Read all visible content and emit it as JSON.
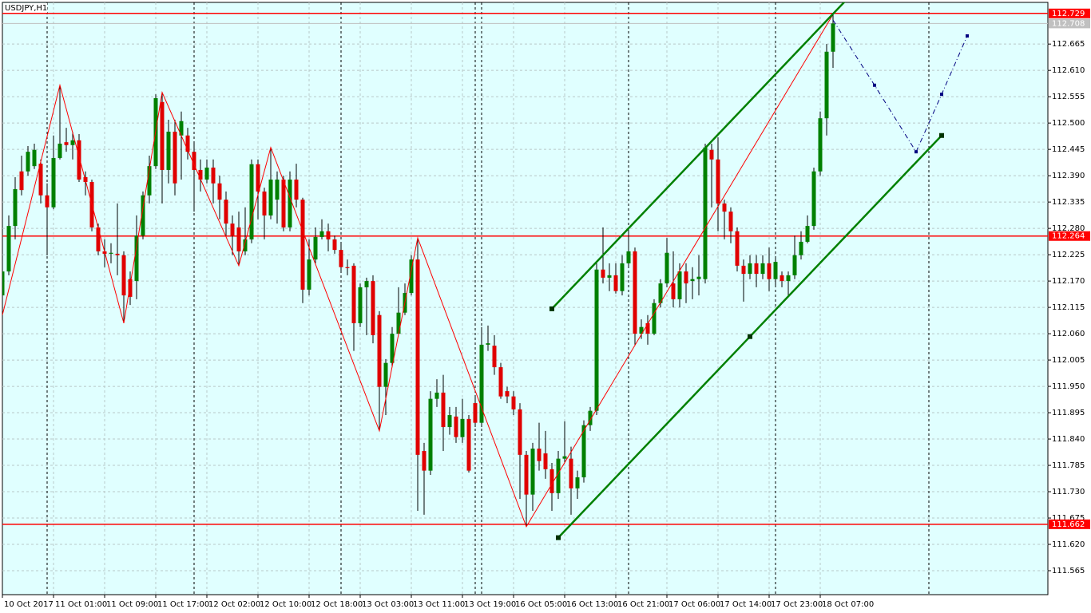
{
  "chart_data": {
    "type": "candlestick",
    "title": "USDJPY,H1",
    "categories": [
      "10 Oct 2017",
      null,
      null,
      null,
      null,
      null,
      null,
      null,
      "11 Oct 01:00",
      null,
      null,
      null,
      null,
      null,
      null,
      null,
      "11 Oct 09:00",
      null,
      null,
      null,
      null,
      null,
      null,
      null,
      "11 Oct 17:00",
      null,
      null,
      null,
      null,
      null,
      null,
      null,
      "12 Oct 02:00",
      null,
      null,
      null,
      null,
      null,
      null,
      null,
      "12 Oct 10:00",
      null,
      null,
      null,
      null,
      null,
      null,
      null,
      "12 Oct 18:00",
      null,
      null,
      null,
      null,
      null,
      null,
      null,
      "13 Oct 03:00",
      null,
      null,
      null,
      null,
      null,
      null,
      null,
      "13 Oct 11:00",
      null,
      null,
      null,
      null,
      null,
      null,
      null,
      "13 Oct 19:00",
      null,
      null,
      null,
      null,
      null,
      null,
      null,
      "16 Oct 05:00",
      null,
      null,
      null,
      null,
      null,
      null,
      null,
      "16 Oct 13:00",
      null,
      null,
      null,
      null,
      null,
      null,
      null,
      "16 Oct 21:00",
      null,
      null,
      null,
      null,
      null,
      null,
      null,
      "17 Oct 06:00",
      null,
      null,
      null,
      null,
      null,
      null,
      null,
      "17 Oct 14:00",
      null,
      null,
      null,
      null,
      null,
      null,
      null,
      "17 Oct 23:00",
      null,
      null,
      null,
      null,
      null,
      null,
      null,
      "18 Oct 07:00",
      null,
      null
    ],
    "open": [
      112.14,
      112.19,
      112.285,
      112.399,
      112.399,
      112.41,
      112.415,
      112.349,
      112.324,
      112.427,
      112.46,
      112.454,
      112.464,
      112.387,
      112.377,
      112.282,
      112.232,
      112.227,
      112.227,
      112.224,
      112.174,
      112.17,
      112.265,
      112.349,
      112.41,
      112.544,
      112.402,
      112.482,
      112.474,
      112.474,
      112.44,
      112.402,
      112.382,
      112.407,
      112.374,
      112.34,
      112.29,
      112.282,
      112.232,
      112.257,
      112.414,
      112.357,
      112.307,
      112.34,
      112.382,
      112.282,
      112.382,
      112.34,
      112.152,
      112.215,
      112.262,
      112.274,
      112.257,
      112.235,
      112.199,
      112.202,
      112.082,
      112.157,
      112.17,
      112.099,
      111.949,
      111.999,
      112.06,
      112.104,
      112.145,
      112.215,
      111.815,
      111.774,
      111.924,
      111.937,
      111.865,
      111.887,
      111.844,
      111.882,
      111.915,
      111.874,
      112.037,
      112.035,
      111.99,
      111.94,
      111.929,
      111.902,
      111.807,
      111.724,
      111.82,
      111.81,
      111.777,
      111.727,
      111.799,
      111.799,
      111.737,
      111.76,
      111.869,
      111.899,
      112.194,
      112.177,
      112.182,
      112.149,
      112.207,
      112.232,
      112.06,
      112.082,
      112.06,
      112.124,
      112.165,
      112.165,
      112.132,
      112.19,
      112.17,
      112.174,
      112.174,
      112.444,
      112.424,
      112.332,
      112.315,
      112.274,
      112.202,
      112.185,
      112.207,
      112.185,
      112.207,
      112.174,
      112.182,
      112.17,
      112.182,
      112.224,
      112.252,
      112.285,
      112.399,
      112.51,
      112.649
    ],
    "high": [
      112.207,
      112.307,
      112.387,
      112.432,
      112.452,
      112.457,
      112.424,
      112.374,
      112.474,
      112.579,
      112.49,
      112.482,
      112.477,
      112.399,
      112.382,
      112.29,
      112.257,
      112.249,
      112.332,
      112.232,
      112.19,
      112.307,
      112.357,
      112.432,
      112.56,
      112.564,
      112.507,
      112.507,
      112.524,
      112.49,
      112.457,
      112.424,
      112.424,
      112.424,
      112.39,
      112.357,
      112.307,
      112.315,
      112.324,
      112.424,
      112.424,
      112.365,
      112.449,
      112.399,
      112.39,
      112.399,
      112.415,
      112.344,
      112.257,
      112.282,
      112.299,
      112.29,
      112.265,
      112.249,
      112.215,
      112.207,
      112.165,
      112.177,
      112.182,
      112.107,
      112.007,
      112.074,
      112.157,
      112.165,
      112.224,
      112.26,
      111.832,
      111.94,
      111.965,
      111.974,
      111.907,
      111.907,
      111.924,
      111.89,
      111.932,
      112.074,
      112.077,
      112.057,
      111.999,
      111.949,
      111.94,
      111.915,
      111.815,
      111.832,
      111.874,
      111.857,
      111.79,
      111.815,
      111.877,
      111.824,
      111.774,
      111.879,
      111.907,
      112.207,
      112.282,
      112.207,
      112.207,
      112.224,
      112.282,
      112.24,
      112.09,
      112.099,
      112.132,
      112.174,
      112.26,
      112.232,
      112.207,
      112.207,
      112.199,
      112.224,
      112.457,
      112.457,
      112.47,
      112.34,
      112.324,
      112.282,
      112.215,
      112.224,
      112.224,
      112.224,
      112.24,
      112.22,
      112.19,
      112.19,
      112.265,
      112.274,
      112.307,
      112.407,
      112.524,
      112.665,
      112.727
    ],
    "low": [
      112.099,
      112.182,
      112.257,
      112.349,
      112.39,
      112.404,
      112.332,
      112.224,
      112.32,
      112.424,
      112.44,
      112.424,
      112.377,
      112.349,
      112.274,
      112.224,
      112.199,
      112.207,
      112.182,
      112.082,
      112.12,
      112.132,
      112.257,
      112.332,
      112.404,
      112.332,
      112.374,
      112.349,
      112.382,
      112.424,
      112.315,
      112.357,
      112.374,
      112.332,
      112.299,
      112.265,
      112.224,
      112.202,
      112.224,
      112.249,
      112.299,
      112.257,
      112.299,
      112.29,
      112.274,
      112.274,
      112.324,
      112.124,
      112.14,
      112.207,
      112.257,
      112.232,
      112.227,
      112.19,
      112.182,
      112.024,
      112.074,
      112.057,
      112.04,
      111.857,
      111.89,
      111.99,
      112.057,
      112.099,
      112.14,
      111.69,
      111.682,
      111.765,
      111.907,
      111.815,
      111.849,
      111.832,
      111.832,
      111.77,
      111.865,
      111.865,
      112.024,
      111.974,
      111.924,
      111.915,
      111.89,
      111.715,
      111.657,
      111.69,
      111.774,
      111.757,
      111.69,
      111.715,
      111.79,
      111.682,
      111.715,
      111.749,
      111.857,
      111.89,
      112.165,
      112.149,
      112.144,
      112.14,
      112.199,
      112.037,
      112.049,
      112.037,
      112.057,
      112.115,
      112.157,
      112.115,
      112.115,
      112.124,
      112.132,
      112.14,
      112.165,
      112.324,
      112.274,
      112.257,
      112.249,
      112.19,
      112.127,
      112.174,
      112.157,
      112.174,
      112.149,
      112.157,
      112.157,
      112.14,
      112.174,
      112.215,
      112.249,
      112.277,
      112.39,
      112.474,
      112.615
    ],
    "close": [
      112.19,
      112.285,
      112.362,
      112.36,
      112.44,
      112.444,
      112.349,
      112.324,
      112.427,
      112.457,
      112.454,
      112.464,
      112.382,
      112.377,
      112.282,
      112.232,
      112.227,
      112.229,
      112.224,
      112.14,
      112.137,
      112.265,
      112.349,
      112.41,
      112.552,
      112.402,
      112.482,
      112.374,
      112.504,
      112.44,
      112.402,
      112.382,
      112.407,
      112.374,
      112.34,
      112.29,
      112.265,
      112.232,
      112.257,
      112.414,
      112.357,
      112.307,
      112.382,
      112.382,
      112.282,
      112.382,
      112.34,
      112.152,
      112.215,
      112.262,
      112.274,
      112.257,
      112.235,
      112.199,
      112.197,
      112.082,
      112.157,
      112.17,
      112.057,
      111.949,
      111.999,
      112.06,
      112.104,
      112.145,
      112.215,
      111.807,
      111.774,
      111.924,
      111.937,
      111.865,
      111.89,
      111.844,
      111.882,
      111.774,
      111.874,
      112.037,
      112.04,
      111.99,
      111.929,
      111.929,
      111.902,
      111.807,
      111.724,
      111.82,
      111.794,
      111.777,
      111.727,
      111.799,
      111.804,
      111.737,
      111.76,
      111.869,
      111.899,
      112.194,
      112.177,
      112.182,
      112.149,
      112.207,
      112.232,
      112.06,
      112.074,
      112.06,
      112.124,
      112.165,
      112.229,
      112.132,
      112.19,
      112.165,
      112.174,
      112.179,
      112.449,
      112.424,
      112.332,
      112.315,
      112.274,
      112.202,
      112.185,
      112.207,
      112.185,
      112.207,
      112.174,
      112.21,
      112.17,
      112.182,
      112.224,
      112.252,
      112.285,
      112.399,
      112.51,
      112.649,
      112.708
    ],
    "up_color": "#008000",
    "down_color": "#e00000",
    "ylim": [
      111.515,
      112.752
    ],
    "yticks": [
      112.665,
      {
        "value": 112.61,
        "label": "112.610"
      },
      112.555,
      {
        "value": 112.5,
        "label": "112.500"
      },
      112.445,
      {
        "value": 112.39,
        "label": "112.390"
      },
      112.335,
      {
        "value": 112.28,
        "label": "112.280"
      },
      112.225,
      {
        "value": 112.17,
        "label": "112.170"
      },
      112.115,
      {
        "value": 112.06,
        "label": "112.060"
      },
      112.005,
      {
        "value": 111.95,
        "label": "111.950"
      },
      111.895,
      {
        "value": 111.84,
        "label": "111.840"
      },
      111.785,
      {
        "value": 111.73,
        "label": "111.730"
      },
      111.675,
      {
        "value": 111.62,
        "label": "111.620"
      },
      111.565
    ],
    "grid": true,
    "hlines": [
      {
        "value": 112.729,
        "color": "#ff0000"
      },
      {
        "value": 112.708,
        "color": "#c0c0c0"
      },
      {
        "value": 112.264,
        "color": "#ff0000"
      },
      {
        "value": 111.662,
        "color": "#ff0000"
      }
    ],
    "zigzag": {
      "x": [
        0,
        9,
        19,
        25,
        37,
        42,
        59,
        65,
        82,
        130
      ],
      "values": [
        112.099,
        112.579,
        112.082,
        112.564,
        112.202,
        112.449,
        111.857,
        112.26,
        111.657,
        112.727
      ],
      "color": "#ff0000"
    },
    "channel": {
      "x": [
        86,
        87,
        117,
        147
      ],
      "values": [
        112.112,
        111.634,
        112.054,
        112.474
      ],
      "color": "#008000"
    },
    "projection": {
      "x": [
        130,
        136.5,
        143,
        147,
        151
      ],
      "values": [
        112.715,
        112.579,
        112.44,
        112.56,
        112.682
      ],
      "color": "#000080"
    }
  }
}
